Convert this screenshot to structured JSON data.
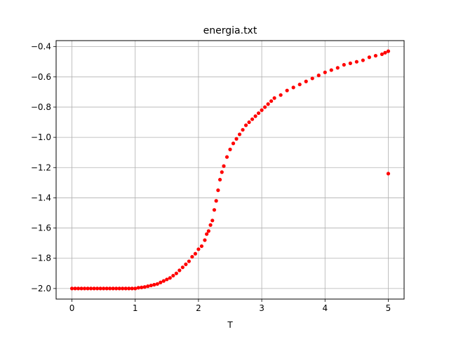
{
  "chart_data": {
    "type": "scatter",
    "title": "energia.txt",
    "xlabel": "T",
    "ylabel": "",
    "xlim": [
      -0.25,
      5.25
    ],
    "ylim": [
      -2.07,
      -0.36
    ],
    "x_ticks": [
      0,
      1,
      2,
      3,
      4,
      5
    ],
    "y_ticks": [
      -2.0,
      -1.8,
      -1.6,
      -1.4,
      -1.2,
      -1.0,
      -0.8,
      -0.6,
      -0.4
    ],
    "x_tick_labels": [
      "0",
      "1",
      "2",
      "3",
      "4",
      "5"
    ],
    "y_tick_labels": [
      "−2.0",
      "−1.8",
      "−1.6",
      "−1.4",
      "−1.2",
      "−1.0",
      "−0.8",
      "−0.6",
      "−0.4"
    ],
    "grid": true,
    "marker_color": "#ff0000",
    "series": [
      {
        "x": [
          0.0,
          0.05,
          0.1,
          0.15,
          0.2,
          0.25,
          0.3,
          0.35,
          0.4,
          0.45,
          0.5,
          0.55,
          0.6,
          0.65,
          0.7,
          0.75,
          0.8,
          0.85,
          0.9,
          0.95,
          1.0,
          1.05,
          1.1,
          1.15,
          1.2,
          1.25,
          1.3,
          1.35,
          1.4,
          1.45,
          1.5,
          1.55,
          1.6,
          1.65,
          1.7,
          1.75,
          1.8,
          1.85,
          1.9,
          1.95,
          2.0,
          2.05,
          2.1,
          2.13,
          2.16,
          2.19,
          2.22,
          2.25,
          2.28,
          2.31,
          2.34,
          2.37,
          2.4,
          2.45,
          2.5,
          2.55,
          2.6,
          2.65,
          2.7,
          2.75,
          2.8,
          2.85,
          2.9,
          2.95,
          3.0,
          3.05,
          3.1,
          3.15,
          3.2,
          3.3,
          3.4,
          3.5,
          3.6,
          3.7,
          3.8,
          3.9,
          4.0,
          4.1,
          4.2,
          4.3,
          4.4,
          4.5,
          4.6,
          4.7,
          4.8,
          4.9,
          4.95,
          5.0,
          5.0
        ],
        "y": [
          -2.0,
          -2.0,
          -2.0,
          -2.0,
          -2.0,
          -2.0,
          -2.0,
          -2.0,
          -2.0,
          -2.0,
          -2.0,
          -2.0,
          -2.0,
          -2.0,
          -2.0,
          -2.0,
          -2.0,
          -2.0,
          -2.0,
          -2.0,
          -2.0,
          -1.995,
          -1.993,
          -1.99,
          -1.985,
          -1.98,
          -1.975,
          -1.97,
          -1.96,
          -1.95,
          -1.94,
          -1.93,
          -1.915,
          -1.9,
          -1.88,
          -1.86,
          -1.84,
          -1.82,
          -1.79,
          -1.77,
          -1.74,
          -1.72,
          -1.68,
          -1.64,
          -1.62,
          -1.58,
          -1.55,
          -1.48,
          -1.42,
          -1.35,
          -1.28,
          -1.23,
          -1.19,
          -1.13,
          -1.08,
          -1.04,
          -1.01,
          -0.98,
          -0.95,
          -0.92,
          -0.9,
          -0.88,
          -0.86,
          -0.84,
          -0.82,
          -0.8,
          -0.78,
          -0.76,
          -0.74,
          -0.72,
          -0.69,
          -0.67,
          -0.65,
          -0.63,
          -0.61,
          -0.59,
          -0.57,
          -0.555,
          -0.54,
          -0.52,
          -0.51,
          -0.5,
          -0.49,
          -0.47,
          -0.46,
          -0.45,
          -0.44,
          -0.43,
          -1.24
        ]
      }
    ]
  }
}
